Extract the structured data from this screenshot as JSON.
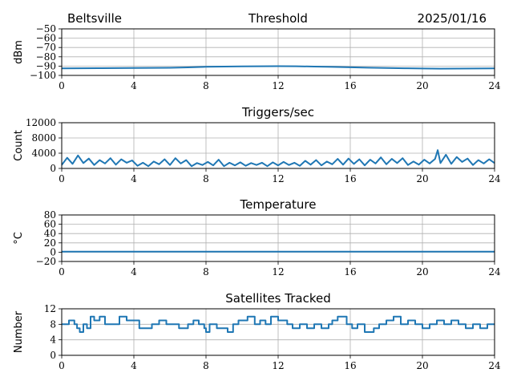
{
  "header": {
    "station": "Beltsville",
    "date": "2025/01/16"
  },
  "chart_data": [
    {
      "type": "line",
      "title": "Threshold",
      "ylabel": "dBm",
      "xlim": [
        0,
        24
      ],
      "ylim": [
        -100,
        -50
      ],
      "xticks": [
        0,
        4,
        8,
        12,
        16,
        20,
        24
      ],
      "yticks": [
        -100,
        -90,
        -80,
        -70,
        -60,
        -50
      ],
      "grid": true,
      "series_color": "#1f77b4",
      "x": [
        0,
        2,
        4,
        6,
        7,
        8,
        9,
        10,
        11,
        12,
        13,
        14,
        15,
        16,
        17,
        18,
        19,
        20,
        21,
        22,
        23,
        24
      ],
      "y": [
        -92.5,
        -92.2,
        -92,
        -91.8,
        -91.4,
        -90.8,
        -90.5,
        -90.3,
        -90.2,
        -90.1,
        -90.2,
        -90.5,
        -90.9,
        -91.3,
        -91.7,
        -92,
        -92.3,
        -92.6,
        -92.8,
        -92.7,
        -92.6,
        -92.5
      ]
    },
    {
      "type": "line",
      "title": "Triggers/sec",
      "ylabel": "Count",
      "xlim": [
        0,
        24
      ],
      "ylim": [
        0,
        12000
      ],
      "xticks": [
        0,
        4,
        8,
        12,
        16,
        20,
        24
      ],
      "yticks": [
        0,
        4000,
        8000,
        12000
      ],
      "grid": true,
      "series_color": "#1f77b4",
      "x": [
        0,
        0.3,
        0.6,
        0.9,
        1.2,
        1.5,
        1.8,
        2.1,
        2.4,
        2.7,
        3,
        3.3,
        3.6,
        3.9,
        4.2,
        4.5,
        4.8,
        5.1,
        5.4,
        5.7,
        6,
        6.3,
        6.6,
        6.9,
        7.2,
        7.5,
        7.8,
        8.1,
        8.4,
        8.7,
        9,
        9.3,
        9.6,
        9.9,
        10.2,
        10.5,
        10.8,
        11.1,
        11.4,
        11.7,
        12,
        12.3,
        12.6,
        12.9,
        13.2,
        13.5,
        13.8,
        14.1,
        14.4,
        14.7,
        15,
        15.3,
        15.6,
        15.9,
        16.2,
        16.5,
        16.8,
        17.1,
        17.4,
        17.7,
        18,
        18.3,
        18.6,
        18.9,
        19.2,
        19.5,
        19.8,
        20.1,
        20.4,
        20.7,
        20.85,
        21,
        21.3,
        21.6,
        21.9,
        22.2,
        22.5,
        22.8,
        23.1,
        23.4,
        23.7,
        24
      ],
      "y": [
        900,
        2800,
        1200,
        3400,
        1400,
        2600,
        900,
        2200,
        1300,
        2700,
        1000,
        2400,
        1500,
        2100,
        700,
        1500,
        600,
        1800,
        1100,
        2400,
        900,
        2700,
        1300,
        2200,
        600,
        1400,
        900,
        1700,
        800,
        2300,
        600,
        1500,
        800,
        1600,
        700,
        1400,
        900,
        1500,
        600,
        1600,
        800,
        1700,
        900,
        1500,
        700,
        2000,
        1000,
        2200,
        800,
        1800,
        1100,
        2500,
        1000,
        2600,
        1200,
        2400,
        800,
        2300,
        1300,
        2900,
        1100,
        2500,
        1400,
        2700,
        900,
        1800,
        1000,
        2300,
        1300,
        2500,
        4800,
        1400,
        3600,
        1200,
        3000,
        1700,
        2600,
        900,
        2200,
        1300,
        2400,
        1400
      ]
    },
    {
      "type": "line",
      "title": "Temperature",
      "ylabel": "°C",
      "xlim": [
        0,
        24
      ],
      "ylim": [
        -20,
        80
      ],
      "xticks": [
        0,
        4,
        8,
        12,
        16,
        20,
        24
      ],
      "yticks": [
        -20,
        0,
        20,
        40,
        60,
        80
      ],
      "grid": true,
      "series_color": "#1f77b4",
      "x": [
        0,
        24
      ],
      "y": [
        1,
        1
      ]
    },
    {
      "type": "line",
      "title": "Satellites Tracked",
      "ylabel": "Number",
      "xlim": [
        0,
        24
      ],
      "ylim": [
        0,
        12
      ],
      "xticks": [
        0,
        4,
        8,
        12,
        16,
        20,
        24
      ],
      "yticks": [
        0,
        4,
        8,
        12
      ],
      "grid": true,
      "step": true,
      "series_color": "#1f77b4",
      "x": [
        0,
        0.4,
        0.7,
        0.85,
        1,
        1.2,
        1.4,
        1.6,
        1.8,
        2.1,
        2.4,
        3.2,
        3.6,
        4.3,
        5,
        5.4,
        5.8,
        6.5,
        7,
        7.3,
        7.6,
        7.9,
        8,
        8.2,
        8.6,
        9.2,
        9.5,
        9.8,
        10.3,
        10.7,
        11,
        11.3,
        11.6,
        12,
        12.5,
        12.8,
        13.2,
        13.6,
        14,
        14.4,
        14.8,
        15,
        15.3,
        15.8,
        16.1,
        16.4,
        16.8,
        17.3,
        17.6,
        18,
        18.4,
        18.8,
        19.2,
        19.6,
        20,
        20.4,
        20.8,
        21.2,
        21.6,
        22,
        22.4,
        22.8,
        23.2,
        23.6,
        24
      ],
      "y": [
        8,
        9,
        8,
        7,
        6,
        8,
        7,
        10,
        9,
        10,
        8,
        10,
        9,
        7,
        8,
        9,
        8,
        7,
        8,
        9,
        8,
        7,
        6,
        8,
        7,
        6,
        8,
        9,
        10,
        8,
        9,
        8,
        10,
        9,
        8,
        7,
        8,
        7,
        8,
        7,
        8,
        9,
        10,
        8,
        7,
        8,
        6,
        7,
        8,
        9,
        10,
        8,
        9,
        8,
        7,
        8,
        9,
        8,
        9,
        8,
        7,
        8,
        7,
        8,
        8
      ]
    }
  ]
}
